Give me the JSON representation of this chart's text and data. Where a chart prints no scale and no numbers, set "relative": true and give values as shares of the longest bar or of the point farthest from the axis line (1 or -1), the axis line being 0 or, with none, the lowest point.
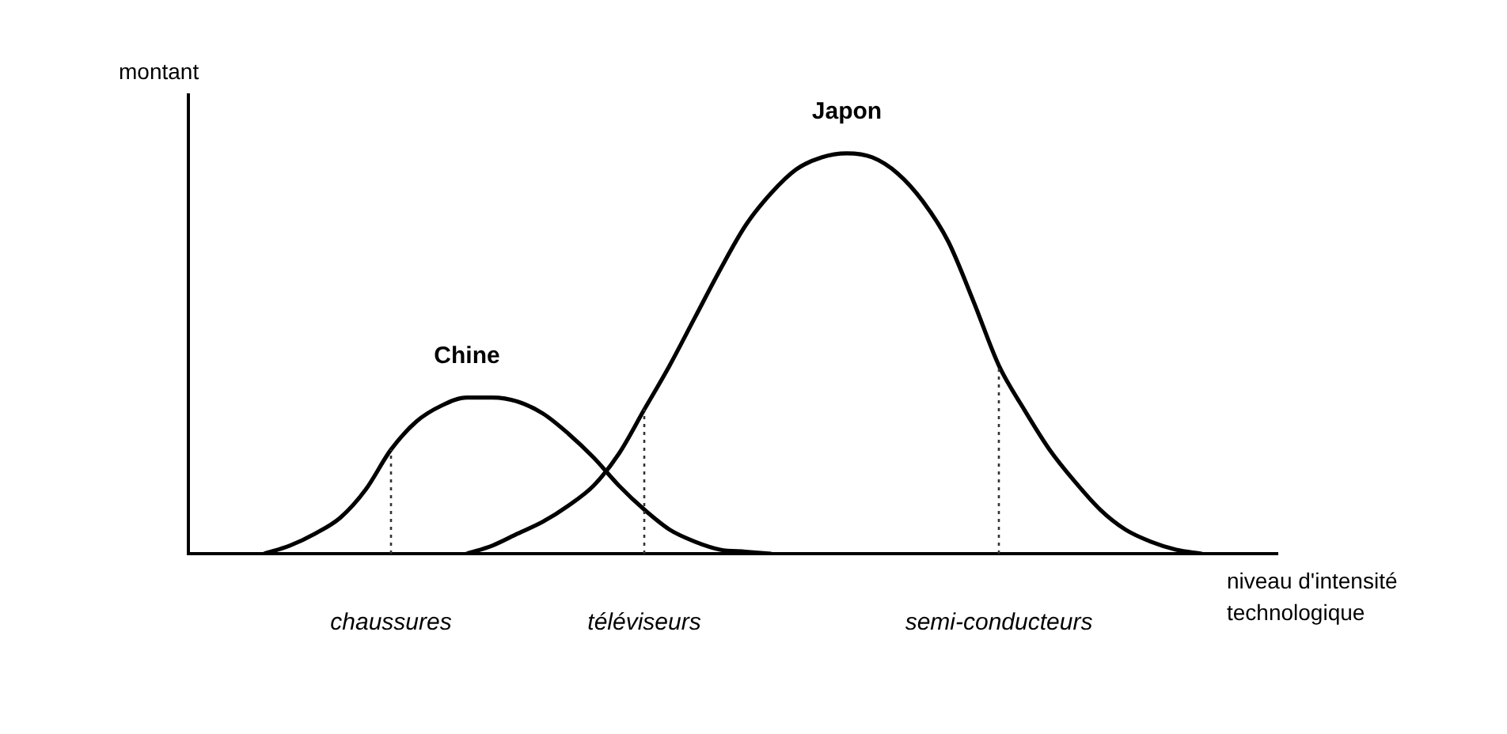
{
  "chart_data": {
    "type": "line",
    "relative": true,
    "xlabel": "niveau d'intensité technologique",
    "ylabel": "montant",
    "categories": [
      null,
      null,
      null,
      null,
      null,
      null,
      null,
      null,
      "chaussures",
      null,
      null,
      null,
      null,
      null,
      null,
      null,
      null,
      null,
      "téléviseurs",
      null,
      null,
      null,
      null,
      null,
      null,
      null,
      null,
      null,
      null,
      null,
      null,
      null,
      "semi-conducteurs",
      null,
      null,
      null,
      null,
      null,
      null,
      null,
      null,
      null,
      null,
      null
    ],
    "series": [
      {
        "name": "Chine",
        "color": "#000000",
        "values": [
          null,
          null,
          null,
          0,
          0.02,
          0.05,
          0.09,
          0.16,
          0.26,
          0.33,
          0.37,
          0.39,
          0.39,
          0.38,
          0.35,
          0.3,
          0.24,
          0.17,
          0.11,
          0.06,
          0.03,
          0.01,
          0.005,
          0,
          null,
          null,
          null,
          null,
          null,
          null,
          null,
          null,
          null,
          null,
          null,
          null,
          null,
          null,
          null,
          null,
          null,
          null,
          null,
          null
        ]
      },
      {
        "name": "Japon",
        "color": "#000000",
        "values": [
          null,
          null,
          null,
          null,
          null,
          null,
          null,
          null,
          null,
          null,
          null,
          0,
          0.02,
          0.05,
          0.08,
          0.12,
          0.17,
          0.25,
          0.36,
          0.47,
          0.59,
          0.71,
          0.82,
          0.9,
          0.96,
          0.99,
          1,
          0.99,
          0.95,
          0.88,
          0.78,
          0.63,
          0.47,
          0.36,
          0.26,
          0.18,
          0.11,
          0.06,
          0.03,
          0.01,
          0,
          null,
          null,
          null
        ]
      }
    ],
    "ref_lines": [
      {
        "axis": "x",
        "value": "chaussures",
        "line_style": "dotted"
      },
      {
        "axis": "x",
        "value": "téléviseurs",
        "line_style": "dotted"
      },
      {
        "axis": "x",
        "value": "semi-conducteurs",
        "line_style": "dotted"
      }
    ],
    "line_style": "solid",
    "marker": "none",
    "tick_labels": "x",
    "legend": false,
    "grid": false
  }
}
